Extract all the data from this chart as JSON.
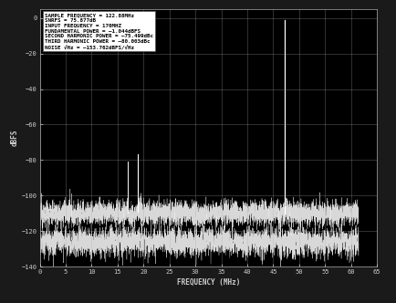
{
  "title": "",
  "xlabel": "FREQUENCY (MHz)",
  "ylabel": "dBFS",
  "xlim": [
    0,
    65
  ],
  "ylim": [
    -140,
    5
  ],
  "yticks": [
    0,
    -20,
    -40,
    -60,
    -80,
    -100,
    -120,
    -140
  ],
  "xticks": [
    0,
    5,
    10,
    15,
    20,
    25,
    30,
    35,
    40,
    45,
    50,
    55,
    60,
    65
  ],
  "sample_freq_mhz": 122.88,
  "fund_freq_mhz": 47.12,
  "second_harm_freq_mhz": 18.88,
  "third_harm_freq_mhz": 17.0,
  "fundamental_power_dbfs": -1.044,
  "second_harm_abs_dbfs": -76.543,
  "third_harm_abs_dbfs": -81.047,
  "noise_floor1_dbfs": -110.0,
  "noise_floor2_dbfs": -126.0,
  "annotation_lines": [
    "SAMPLE FREQUENCY = 122.88MHz",
    "SNRFS = 75.877dB",
    "INPUT FREQUENCY = 170MHZ",
    "FUNDAMENTAL POWER = –1.044dBFS",
    "SECOND HARMONIC POWER = –75.499dBc",
    "THIRD HARMONIC POWER = –80.003dBc",
    "NOISE √Hz = –153.762dBFS/√Hz"
  ],
  "bg_color": "#1a1a1a",
  "plot_bg_color": "#000000",
  "grid_color": "#aaaaaa",
  "line_color": "#ffffff",
  "text_color": "#ffffff",
  "annotation_bg": "#ffffff",
  "annotation_text_color": "#000000",
  "tick_label_color": "#cccccc",
  "noise1_std": 3.5,
  "noise2_std": 4.0,
  "figsize": [
    4.35,
    3.32
  ],
  "dpi": 100
}
